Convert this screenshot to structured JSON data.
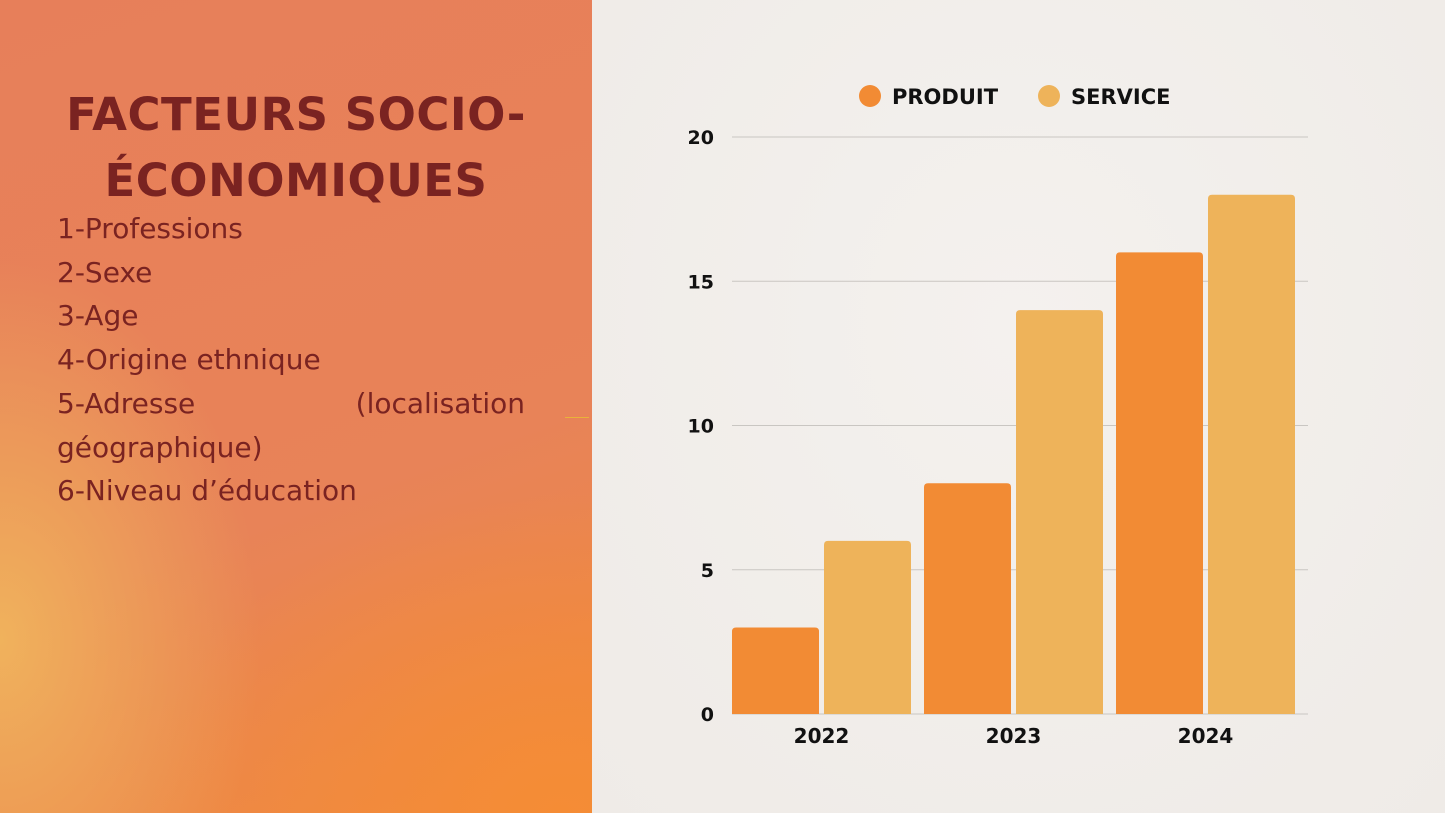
{
  "slide": {
    "title": "FACTEURS SOCIO-ÉCONOMIQUES",
    "factors": [
      "1-Professions",
      "2-Sexe",
      "3-Age",
      "4-Origine ethnique",
      "5-Adresse (localisation géographique)",
      "6-Niveau d’éducation"
    ]
  },
  "colors": {
    "title": "#7a2321",
    "produit": "#f28b34",
    "service": "#eeb35a",
    "gridline": "#c9c6c2"
  },
  "chart_data": {
    "type": "bar",
    "categories": [
      "2022",
      "2023",
      "2024"
    ],
    "series": [
      {
        "name": "PRODUIT",
        "values": [
          3,
          8,
          16
        ]
      },
      {
        "name": "SERVICE",
        "values": [
          6,
          14,
          18
        ]
      }
    ],
    "title": "",
    "xlabel": "",
    "ylabel": "",
    "ylim": [
      0,
      20
    ],
    "yticks": [
      "0",
      "5",
      "10",
      "15",
      "20"
    ],
    "grid": true,
    "legend": "top-center"
  }
}
